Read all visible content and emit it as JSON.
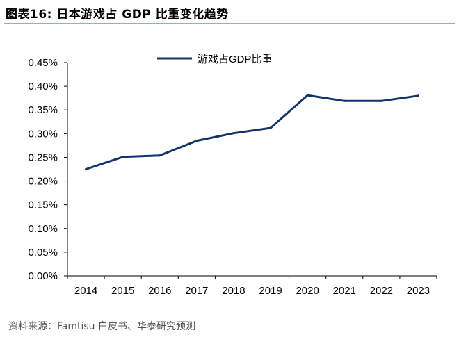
{
  "header": {
    "title": "图表16:   日本游戏占 GDP 比重变化趋势"
  },
  "footer": {
    "source": "资料来源：Famtisu 白皮书、华泰研究预测"
  },
  "chart_data": {
    "type": "line",
    "title": "",
    "xlabel": "",
    "ylabel": "",
    "categories": [
      "2014",
      "2015",
      "2016",
      "2017",
      "2018",
      "2019",
      "2020",
      "2021",
      "2022",
      "2023"
    ],
    "series": [
      {
        "name": "游戏占GDP比重",
        "color": "#14336a",
        "values": [
          0.225,
          0.251,
          0.254,
          0.285,
          0.301,
          0.312,
          0.381,
          0.369,
          0.369,
          0.38
        ]
      }
    ],
    "ylim": [
      0,
      0.45
    ],
    "yticks": [
      "0.00%",
      "0.05%",
      "0.10%",
      "0.15%",
      "0.20%",
      "0.25%",
      "0.30%",
      "0.35%",
      "0.40%",
      "0.45%"
    ],
    "legend": "top-center",
    "grid": false
  }
}
